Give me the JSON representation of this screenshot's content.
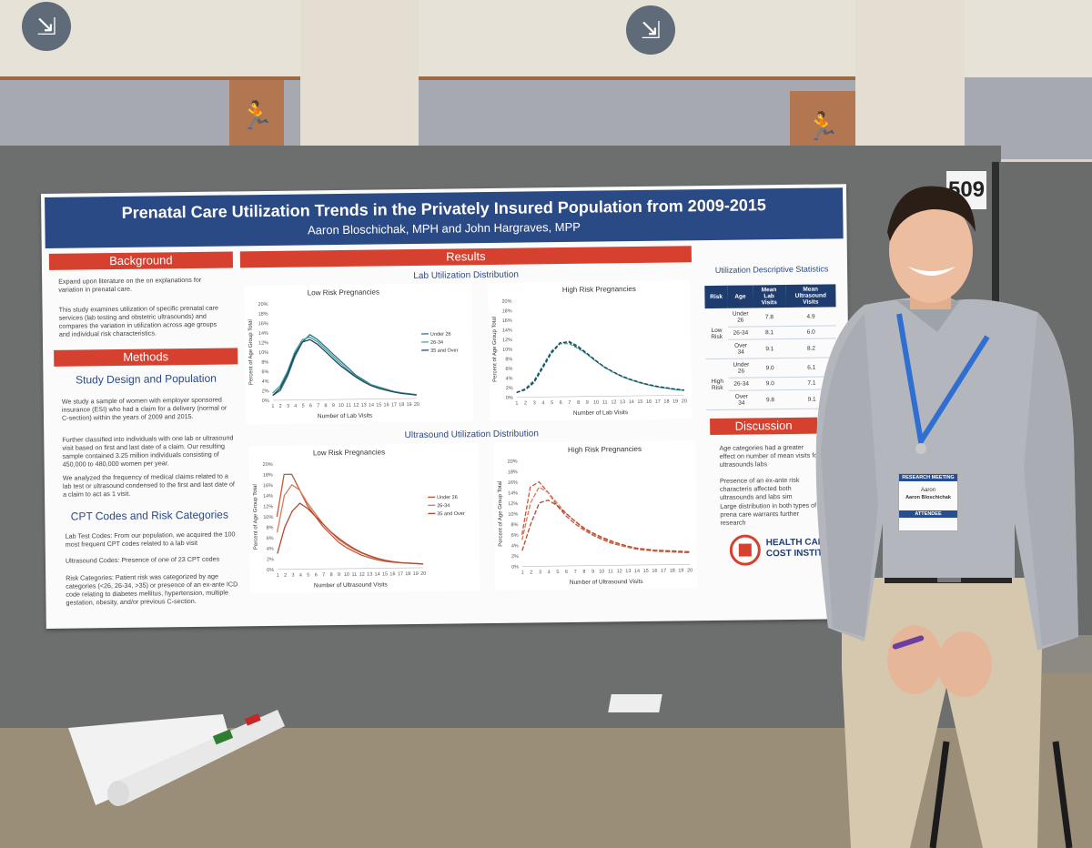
{
  "scene": {
    "booth_number": "509"
  },
  "poster": {
    "title": "Prenatal Care Utilization Trends in the Privately Insured Population from 2009-2015",
    "authors": "Aaron Bloschichak, MPH and John Hargraves, MPP",
    "background": {
      "heading": "Background",
      "p1": "Expand upon literature on the on explanations for variation in prenatal care.",
      "p2": "This study examines utilization of specific prenatal care services (lab testing and obstetric ultrasounds) and compares the variation in utilization across age groups and individual risk characteristics."
    },
    "methods": {
      "heading": "Methods",
      "sub1": "Study Design and Population",
      "p1": "We study a sample of women with employer sponsored insurance (ESI) who had a claim for a delivery (normal or C-section) within the years of 2009 and 2015.",
      "p2": "Further classified into individuals with one lab or ultrasound visit based on first and last date of a claim. Our resulting sample contained 3.25 million individuals consisting of 450,000 to 480,000 women per year.",
      "p3": "We analyzed the frequency of medical claims related to a lab test or ultrasound condensed to the first and last date of a claim to act as 1 visit.",
      "sub2": "CPT Codes and Risk Categories",
      "p4": "Lab Test Codes: From our population, we acquired the 100 most frequent CPT codes related to a lab visit",
      "p5": "Ultrasound Codes: Presence of one of 23 CPT codes",
      "p6": "Risk Categories: Patient risk was categorized by age categories (<26, 26-34, >35) or presence of an ex-ante ICD code relating to diabetes mellitus, hypertension, multiple gestation, obesity, and/or previous C-section."
    },
    "results": {
      "heading": "Results",
      "lab_title": "Lab Utilization Distribution",
      "us_title": "Ultrasound Utilization Distribution",
      "low": "Low Risk Pregnancies",
      "high": "High Risk Pregnancies",
      "ylabel": "Percent of Age Group Total",
      "xlabel_lab": "Number of Lab Visits",
      "xlabel_us": "Number of Ultrasound Visits",
      "legend": [
        "Under 26",
        "26-34",
        "35 and Over"
      ]
    },
    "stats": {
      "title": "Utilization Descriptive Statistics",
      "headers": [
        "Risk",
        "Age",
        "Mean Lab Visits",
        "Mean Ultrasound Visits"
      ],
      "groups": [
        "Low Risk",
        "High Risk"
      ],
      "rows": [
        [
          "Under 26",
          "7.8",
          "4.9"
        ],
        [
          "26-34",
          "8.1",
          "6.0"
        ],
        [
          "Over 34",
          "9.1",
          "8.2"
        ],
        [
          "Under 26",
          "9.0",
          "6.1"
        ],
        [
          "26-34",
          "9.0",
          "7.1"
        ],
        [
          "Over 34",
          "9.8",
          "9.1"
        ]
      ]
    },
    "discussion": {
      "heading": "Discussion",
      "p1": "Age categories had a greater effect on number of mean visits for ultrasounds labs",
      "p2": "Presence of an ex-ante risk characteris affected both ultrasounds and labs sim",
      "p3": "Large distribution in both types of prena care warrants further research"
    },
    "logo": {
      "line1": "HEALTH CAR",
      "line2": "COST INSTITU"
    }
  },
  "badge": {
    "event_line1": "RESEARCH MEETING",
    "name1": "Aaron",
    "name2": "Aaron Bloschichak",
    "role": "ATTENDEE"
  },
  "chart_data": [
    {
      "type": "line",
      "title": "Low Risk Pregnancies",
      "xlabel": "Number of Lab Visits",
      "ylabel": "Percent of Age Group Total",
      "x": [
        1,
        2,
        3,
        4,
        5,
        6,
        7,
        8,
        9,
        10,
        11,
        12,
        13,
        14,
        15,
        16,
        17,
        18,
        19,
        20
      ],
      "ylim": [
        0,
        20
      ],
      "series": [
        {
          "name": "Under 26",
          "values": [
            1,
            2,
            5,
            9,
            12,
            13.5,
            12.5,
            11,
            9.5,
            8,
            6.5,
            5,
            4,
            3,
            2.5,
            2,
            1.5,
            1.2,
            1,
            0.8
          ]
        },
        {
          "name": "26-34",
          "values": [
            1.5,
            3,
            6,
            10,
            12.5,
            13,
            12,
            10.5,
            9,
            7.5,
            6,
            4.8,
            3.8,
            3,
            2.4,
            1.9,
            1.5,
            1.2,
            1,
            0.8
          ]
        },
        {
          "name": "35 and Over",
          "values": [
            1,
            2.5,
            5.5,
            9.5,
            12,
            12.5,
            11.5,
            10,
            8.5,
            7,
            5.8,
            4.6,
            3.6,
            2.8,
            2.2,
            1.8,
            1.4,
            1.1,
            0.9,
            0.7
          ]
        }
      ]
    },
    {
      "type": "line",
      "title": "High Risk Pregnancies",
      "xlabel": "Number of Lab Visits",
      "ylabel": "Percent of Age Group Total",
      "x": [
        1,
        2,
        3,
        4,
        5,
        6,
        7,
        8,
        9,
        10,
        11,
        12,
        13,
        14,
        15,
        16,
        17,
        18,
        19,
        20
      ],
      "ylim": [
        0,
        20
      ],
      "series": [
        {
          "name": "Under 26",
          "values": [
            1,
            1.5,
            3,
            6,
            9,
            11,
            11.5,
            10.5,
            9,
            7.5,
            6,
            5,
            4,
            3.3,
            2.7,
            2.2,
            1.8,
            1.5,
            1.2,
            1
          ]
        },
        {
          "name": "26-34",
          "values": [
            1,
            1.8,
            3.5,
            6.5,
            9.5,
            11,
            11,
            10,
            8.8,
            7.3,
            6,
            4.9,
            4,
            3.3,
            2.7,
            2.2,
            1.8,
            1.5,
            1.2,
            1
          ]
        },
        {
          "name": "35 and Over",
          "values": [
            1,
            1.6,
            3.2,
            6.2,
            9.2,
            11.2,
            11.3,
            10.2,
            8.9,
            7.4,
            6.1,
            5,
            4.1,
            3.4,
            2.8,
            2.3,
            1.9,
            1.6,
            1.3,
            1.1
          ]
        }
      ]
    },
    {
      "type": "line",
      "title": "Low Risk Pregnancies",
      "xlabel": "Number of Ultrasound Visits",
      "ylabel": "Percent of Age Group Total",
      "x": [
        1,
        2,
        3,
        4,
        5,
        6,
        7,
        8,
        9,
        10,
        11,
        12,
        13,
        14,
        15,
        16,
        17,
        18,
        19,
        20
      ],
      "ylim": [
        0,
        20
      ],
      "series": [
        {
          "name": "Under 26",
          "values": [
            10,
            18,
            18,
            15,
            12,
            10,
            8,
            6.5,
            5,
            4,
            3.2,
            2.5,
            2,
            1.6,
            1.3,
            1.1,
            1,
            0.9,
            0.8,
            0.7
          ]
        },
        {
          "name": "26-34",
          "values": [
            7,
            14,
            16,
            15,
            12.5,
            10.5,
            8.5,
            7,
            5.5,
            4.5,
            3.6,
            2.9,
            2.3,
            1.8,
            1.5,
            1.2,
            1,
            0.9,
            0.8,
            0.7
          ]
        },
        {
          "name": "35 and Over",
          "values": [
            3,
            8,
            11,
            12.5,
            11.5,
            10,
            8.5,
            7,
            5.8,
            4.7,
            3.8,
            3,
            2.4,
            1.9,
            1.5,
            1.2,
            1,
            0.9,
            0.8,
            0.7
          ]
        }
      ]
    },
    {
      "type": "line",
      "title": "High Risk Pregnancies",
      "xlabel": "Number of Ultrasound Visits",
      "ylabel": "Percent of Age Group Total",
      "x": [
        1,
        2,
        3,
        4,
        5,
        6,
        7,
        8,
        9,
        10,
        11,
        12,
        13,
        14,
        15,
        16,
        17,
        18,
        19,
        20
      ],
      "ylim": [
        0,
        20
      ],
      "series": [
        {
          "name": "Under 26",
          "values": [
            6,
            15,
            16,
            14,
            11.5,
            9.5,
            8,
            6.8,
            5.8,
            5,
            4.3,
            3.8,
            3.4,
            3,
            2.8,
            2.6,
            2.5,
            2.4,
            2.3,
            2.2
          ]
        },
        {
          "name": "26-34",
          "values": [
            5,
            12,
            15,
            14,
            12,
            10,
            8.5,
            7,
            6,
            5.2,
            4.5,
            3.9,
            3.5,
            3.1,
            2.9,
            2.7,
            2.6,
            2.5,
            2.4,
            2.3
          ]
        },
        {
          "name": "35 and Over",
          "values": [
            3,
            8,
            12,
            12.5,
            11.5,
            10,
            8.5,
            7.2,
            6.2,
            5.4,
            4.7,
            4.1,
            3.6,
            3.2,
            3,
            2.8,
            2.7,
            2.6,
            2.5,
            2.4
          ]
        }
      ]
    }
  ]
}
